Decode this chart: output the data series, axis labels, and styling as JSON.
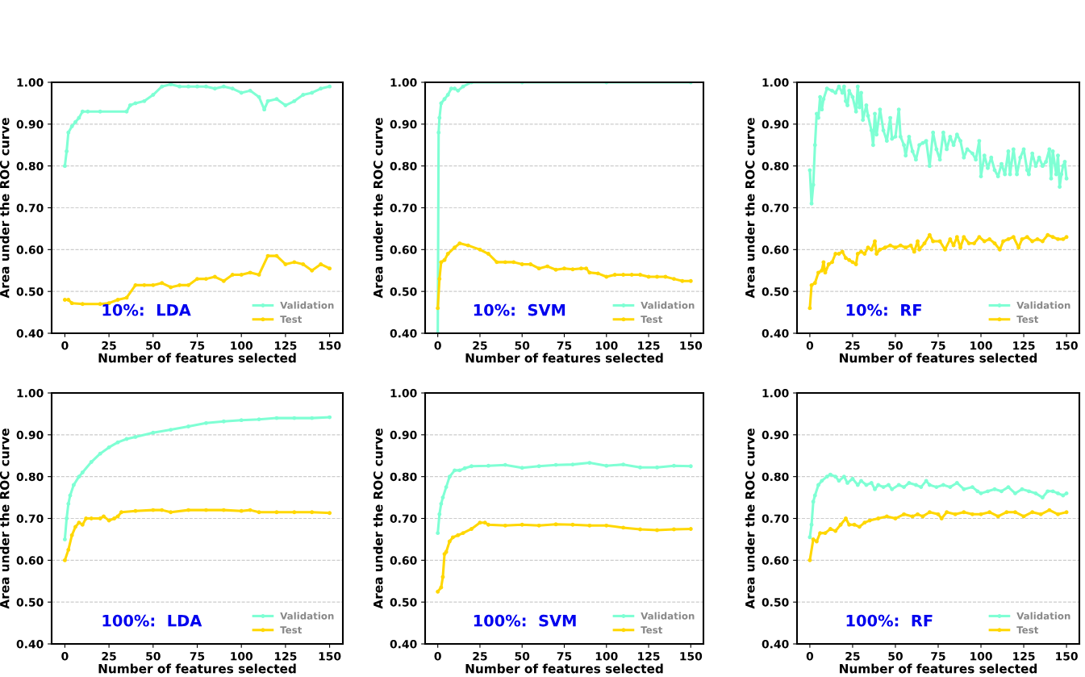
{
  "chart_data": [
    {
      "type": "line",
      "xlabel": "Number of features selected",
      "ylabel": "Area under the ROC curve",
      "annotations": [
        "10%:  LDA"
      ],
      "xlim": [
        -7.5,
        157.5
      ],
      "ylim": [
        0.4,
        1.0
      ],
      "xticks": [
        0,
        25,
        50,
        75,
        100,
        125,
        150
      ],
      "yticks": [
        {
          "value": 0.4,
          "label": "0.40"
        },
        {
          "value": 0.5,
          "label": "0.50"
        },
        {
          "value": 0.6,
          "label": "0.60"
        },
        {
          "value": 0.7,
          "label": "0.70"
        },
        {
          "value": 0.8,
          "label": "0.80"
        },
        {
          "value": 0.9,
          "label": "0.90"
        },
        {
          "value": 1.0,
          "label": "1.00"
        }
      ],
      "grid": "y",
      "legend": "bottom right",
      "marker": "circle",
      "line_style": "solid",
      "series": [
        {
          "name": "Validation",
          "color": "#7fffd4",
          "x": [
            0,
            1,
            2,
            4,
            6,
            8,
            10,
            13,
            20,
            35,
            37,
            40,
            45,
            50,
            55,
            60,
            65,
            70,
            75,
            80,
            85,
            90,
            95,
            100,
            105,
            110,
            113,
            115,
            120,
            125,
            130,
            135,
            140,
            145,
            150
          ],
          "values": [
            0.8,
            0.835,
            0.88,
            0.895,
            0.905,
            0.915,
            0.93,
            0.93,
            0.93,
            0.93,
            0.945,
            0.95,
            0.955,
            0.97,
            0.99,
            0.995,
            0.99,
            0.99,
            0.99,
            0.99,
            0.985,
            0.99,
            0.985,
            0.975,
            0.98,
            0.965,
            0.935,
            0.955,
            0.96,
            0.945,
            0.955,
            0.97,
            0.975,
            0.985,
            0.99
          ]
        },
        {
          "name": "Test",
          "color": "#ffd700",
          "x": [
            0,
            2,
            4,
            10,
            20,
            25,
            30,
            35,
            40,
            45,
            50,
            55,
            60,
            65,
            70,
            75,
            80,
            85,
            90,
            95,
            100,
            105,
            110,
            115,
            120,
            125,
            130,
            135,
            140,
            145,
            150
          ],
          "values": [
            0.48,
            0.48,
            0.472,
            0.47,
            0.47,
            0.472,
            0.48,
            0.485,
            0.515,
            0.515,
            0.515,
            0.52,
            0.51,
            0.515,
            0.515,
            0.53,
            0.53,
            0.535,
            0.525,
            0.54,
            0.54,
            0.545,
            0.54,
            0.585,
            0.585,
            0.565,
            0.57,
            0.565,
            0.55,
            0.565,
            0.555
          ]
        }
      ]
    },
    {
      "type": "line",
      "xlabel": "Number of features selected",
      "ylabel": "Area under the ROC curve",
      "annotations": [
        "10%:  SVM"
      ],
      "xlim": [
        -7.5,
        157.5
      ],
      "ylim": [
        0.4,
        1.0
      ],
      "xticks": [
        0,
        25,
        50,
        75,
        100,
        125,
        150
      ],
      "yticks": [
        {
          "value": 0.4,
          "label": "0.40"
        },
        {
          "value": 0.5,
          "label": "0.50"
        },
        {
          "value": 0.6,
          "label": "0.60"
        },
        {
          "value": 0.7,
          "label": "0.70"
        },
        {
          "value": 0.8,
          "label": "0.80"
        },
        {
          "value": 0.9,
          "label": "0.90"
        },
        {
          "value": 1.0,
          "label": "1.00"
        }
      ],
      "grid": "y",
      "legend": "bottom right",
      "marker": "circle",
      "line_style": "solid",
      "series": [
        {
          "name": "Validation",
          "color": "#7fffd4",
          "x": [
            0,
            0.5,
            1,
            2,
            4,
            6,
            8,
            10,
            12,
            15,
            20,
            50,
            100,
            150
          ],
          "values": [
            0.4,
            0.88,
            0.915,
            0.95,
            0.96,
            0.97,
            0.985,
            0.985,
            0.98,
            0.99,
            1.0,
            1.0,
            1.0,
            1.0
          ]
        },
        {
          "name": "Test",
          "color": "#ffd700",
          "x": [
            0,
            1,
            2,
            4,
            6,
            10,
            13,
            18,
            25,
            30,
            35,
            40,
            45,
            50,
            55,
            60,
            65,
            70,
            75,
            80,
            85,
            88,
            90,
            95,
            100,
            105,
            110,
            115,
            120,
            125,
            130,
            135,
            140,
            145,
            150
          ],
          "values": [
            0.46,
            0.53,
            0.57,
            0.575,
            0.59,
            0.605,
            0.615,
            0.61,
            0.6,
            0.59,
            0.57,
            0.57,
            0.57,
            0.565,
            0.565,
            0.555,
            0.56,
            0.552,
            0.555,
            0.553,
            0.555,
            0.555,
            0.545,
            0.543,
            0.535,
            0.54,
            0.54,
            0.54,
            0.54,
            0.535,
            0.535,
            0.535,
            0.53,
            0.525,
            0.525
          ]
        }
      ]
    },
    {
      "type": "line",
      "xlabel": "Number of features selected",
      "ylabel": "Area under the ROC curve",
      "annotations": [
        "10%:  RF"
      ],
      "xlim": [
        -7.5,
        157.5
      ],
      "ylim": [
        0.4,
        1.0
      ],
      "xticks": [
        0,
        25,
        50,
        75,
        100,
        125,
        150
      ],
      "yticks": [
        {
          "value": 0.4,
          "label": "0.40"
        },
        {
          "value": 0.5,
          "label": "0.50"
        },
        {
          "value": 0.6,
          "label": "0.60"
        },
        {
          "value": 0.7,
          "label": "0.70"
        },
        {
          "value": 0.8,
          "label": "0.80"
        },
        {
          "value": 0.9,
          "label": "0.90"
        },
        {
          "value": 1.0,
          "label": "1.00"
        }
      ],
      "grid": "y",
      "legend": "bottom right",
      "marker": "circle",
      "line_style": "solid",
      "series": [
        {
          "name": "Validation",
          "color": "#7fffd4",
          "x": [
            0,
            1,
            2,
            3,
            4,
            5,
            6,
            7,
            8,
            10,
            13,
            15,
            17,
            19,
            20,
            21,
            22,
            23,
            25,
            27,
            28,
            29,
            30,
            31,
            33,
            34,
            36,
            37,
            38,
            39,
            41,
            43,
            45,
            47,
            48,
            50,
            52,
            53,
            55,
            56,
            58,
            60,
            62,
            64,
            66,
            68,
            70,
            72,
            74,
            76,
            78,
            80,
            82,
            84,
            86,
            88,
            90,
            92,
            95,
            97,
            99,
            100,
            102,
            104,
            106,
            108,
            110,
            112,
            114,
            116,
            117,
            119,
            121,
            123,
            125,
            127,
            128,
            130,
            132,
            134,
            136,
            138,
            140,
            141,
            142,
            144,
            145,
            146,
            147,
            148,
            149,
            150
          ],
          "values": [
            0.79,
            0.71,
            0.755,
            0.85,
            0.925,
            0.915,
            0.965,
            0.935,
            0.96,
            0.985,
            0.98,
            0.975,
            0.99,
            0.975,
            0.99,
            0.955,
            0.945,
            0.98,
            0.965,
            0.93,
            0.99,
            0.94,
            0.975,
            0.91,
            0.945,
            0.92,
            0.885,
            0.85,
            0.925,
            0.875,
            0.935,
            0.885,
            0.86,
            0.915,
            0.865,
            0.87,
            0.935,
            0.87,
            0.85,
            0.825,
            0.87,
            0.835,
            0.815,
            0.85,
            0.855,
            0.86,
            0.8,
            0.88,
            0.84,
            0.815,
            0.88,
            0.84,
            0.87,
            0.85,
            0.875,
            0.86,
            0.82,
            0.84,
            0.83,
            0.815,
            0.86,
            0.775,
            0.825,
            0.795,
            0.82,
            0.79,
            0.775,
            0.805,
            0.78,
            0.835,
            0.78,
            0.84,
            0.78,
            0.82,
            0.84,
            0.79,
            0.78,
            0.83,
            0.8,
            0.82,
            0.8,
            0.81,
            0.84,
            0.77,
            0.835,
            0.78,
            0.825,
            0.75,
            0.78,
            0.8,
            0.81,
            0.77
          ]
        },
        {
          "name": "Test",
          "color": "#ffd700",
          "x": [
            0,
            1,
            3,
            5,
            7,
            8,
            9,
            11,
            13,
            15,
            17,
            19,
            21,
            23,
            25,
            27,
            28,
            30,
            32,
            34,
            36,
            38,
            39,
            41,
            44,
            47,
            50,
            53,
            56,
            59,
            61,
            63,
            64,
            67,
            70,
            72,
            76,
            79,
            82,
            84,
            86,
            88,
            90,
            93,
            96,
            99,
            102,
            105,
            108,
            111,
            113,
            116,
            119,
            122,
            124,
            127,
            130,
            133,
            136,
            139,
            142,
            145,
            148,
            150
          ],
          "values": [
            0.46,
            0.515,
            0.52,
            0.545,
            0.55,
            0.57,
            0.545,
            0.565,
            0.57,
            0.59,
            0.59,
            0.595,
            0.58,
            0.575,
            0.57,
            0.565,
            0.59,
            0.595,
            0.59,
            0.605,
            0.6,
            0.62,
            0.59,
            0.6,
            0.605,
            0.61,
            0.605,
            0.61,
            0.605,
            0.61,
            0.595,
            0.62,
            0.6,
            0.615,
            0.635,
            0.62,
            0.62,
            0.6,
            0.625,
            0.61,
            0.63,
            0.605,
            0.63,
            0.615,
            0.615,
            0.63,
            0.62,
            0.625,
            0.615,
            0.6,
            0.62,
            0.625,
            0.63,
            0.605,
            0.625,
            0.63,
            0.62,
            0.625,
            0.62,
            0.635,
            0.63,
            0.625,
            0.625,
            0.63
          ]
        }
      ]
    },
    {
      "type": "line",
      "xlabel": "Number of features selected",
      "ylabel": "Area under the ROC curve",
      "annotations": [
        "100%:  LDA"
      ],
      "xlim": [
        -7.5,
        157.5
      ],
      "ylim": [
        0.4,
        1.0
      ],
      "xticks": [
        0,
        25,
        50,
        75,
        100,
        125,
        150
      ],
      "yticks": [
        {
          "value": 0.4,
          "label": "0.40"
        },
        {
          "value": 0.5,
          "label": "0.50"
        },
        {
          "value": 0.6,
          "label": "0.60"
        },
        {
          "value": 0.7,
          "label": "0.70"
        },
        {
          "value": 0.8,
          "label": "0.80"
        },
        {
          "value": 0.9,
          "label": "0.90"
        },
        {
          "value": 1.0,
          "label": "1.00"
        }
      ],
      "grid": "y",
      "legend": "bottom right",
      "marker": "circle",
      "line_style": "solid",
      "series": [
        {
          "name": "Validation",
          "color": "#7fffd4",
          "x": [
            0,
            1,
            2,
            3,
            5,
            8,
            10,
            15,
            20,
            25,
            30,
            35,
            40,
            50,
            60,
            70,
            80,
            90,
            100,
            110,
            120,
            130,
            140,
            150
          ],
          "values": [
            0.65,
            0.7,
            0.735,
            0.755,
            0.78,
            0.8,
            0.81,
            0.835,
            0.855,
            0.87,
            0.882,
            0.89,
            0.895,
            0.905,
            0.912,
            0.92,
            0.928,
            0.932,
            0.935,
            0.937,
            0.94,
            0.94,
            0.94,
            0.942
          ]
        },
        {
          "name": "Test",
          "color": "#ffd700",
          "x": [
            0,
            2,
            4,
            6,
            8,
            10,
            12,
            15,
            20,
            22,
            25,
            28,
            30,
            32,
            40,
            50,
            55,
            60,
            70,
            80,
            90,
            100,
            105,
            110,
            120,
            130,
            140,
            150
          ],
          "values": [
            0.6,
            0.625,
            0.66,
            0.68,
            0.69,
            0.685,
            0.7,
            0.7,
            0.7,
            0.705,
            0.695,
            0.7,
            0.705,
            0.715,
            0.718,
            0.72,
            0.72,
            0.715,
            0.72,
            0.72,
            0.72,
            0.718,
            0.72,
            0.715,
            0.715,
            0.715,
            0.715,
            0.713
          ]
        }
      ]
    },
    {
      "type": "line",
      "xlabel": "Number of features selected",
      "ylabel": "Area under the ROC curve",
      "annotations": [
        "100%:  SVM"
      ],
      "xlim": [
        -7.5,
        157.5
      ],
      "ylim": [
        0.4,
        1.0
      ],
      "xticks": [
        0,
        25,
        50,
        75,
        100,
        125,
        150
      ],
      "yticks": [
        {
          "value": 0.4,
          "label": "0.40"
        },
        {
          "value": 0.5,
          "label": "0.50"
        },
        {
          "value": 0.6,
          "label": "0.60"
        },
        {
          "value": 0.7,
          "label": "0.70"
        },
        {
          "value": 0.8,
          "label": "0.80"
        },
        {
          "value": 0.9,
          "label": "0.90"
        },
        {
          "value": 1.0,
          "label": "1.00"
        }
      ],
      "grid": "y",
      "legend": "bottom right",
      "marker": "circle",
      "line_style": "solid",
      "series": [
        {
          "name": "Validation",
          "color": "#7fffd4",
          "x": [
            0,
            1,
            2,
            3,
            5,
            7,
            10,
            13,
            16,
            20,
            30,
            40,
            50,
            60,
            70,
            80,
            90,
            100,
            110,
            120,
            130,
            140,
            150
          ],
          "values": [
            0.665,
            0.71,
            0.735,
            0.75,
            0.775,
            0.8,
            0.815,
            0.815,
            0.82,
            0.825,
            0.826,
            0.828,
            0.821,
            0.825,
            0.828,
            0.829,
            0.833,
            0.826,
            0.829,
            0.822,
            0.822,
            0.826,
            0.825
          ]
        },
        {
          "name": "Test",
          "color": "#ffd700",
          "x": [
            0,
            2,
            3,
            4,
            5,
            7,
            9,
            12,
            15,
            20,
            25,
            28,
            30,
            40,
            50,
            60,
            70,
            80,
            90,
            100,
            110,
            120,
            130,
            140,
            150
          ],
          "values": [
            0.525,
            0.535,
            0.56,
            0.615,
            0.62,
            0.645,
            0.655,
            0.66,
            0.665,
            0.675,
            0.69,
            0.69,
            0.685,
            0.683,
            0.685,
            0.683,
            0.686,
            0.685,
            0.683,
            0.683,
            0.678,
            0.674,
            0.672,
            0.674,
            0.675
          ]
        }
      ]
    },
    {
      "type": "line",
      "xlabel": "Number of features selected",
      "ylabel": "Area under the ROC curve",
      "annotations": [
        "100%:  RF"
      ],
      "xlim": [
        -7.5,
        157.5
      ],
      "ylim": [
        0.4,
        1.0
      ],
      "xticks": [
        0,
        25,
        50,
        75,
        100,
        125,
        150
      ],
      "yticks": [
        {
          "value": 0.4,
          "label": "0.40"
        },
        {
          "value": 0.5,
          "label": "0.50"
        },
        {
          "value": 0.6,
          "label": "0.60"
        },
        {
          "value": 0.7,
          "label": "0.70"
        },
        {
          "value": 0.8,
          "label": "0.80"
        },
        {
          "value": 0.9,
          "label": "0.90"
        },
        {
          "value": 1.0,
          "label": "1.00"
        }
      ],
      "grid": "y",
      "legend": "bottom right",
      "marker": "circle",
      "line_style": "solid",
      "series": [
        {
          "name": "Validation",
          "color": "#7fffd4",
          "x": [
            0,
            1,
            2,
            3,
            5,
            7,
            10,
            12,
            15,
            17,
            20,
            22,
            25,
            28,
            30,
            33,
            36,
            38,
            40,
            43,
            46,
            48,
            52,
            55,
            58,
            62,
            65,
            68,
            70,
            74,
            78,
            82,
            86,
            90,
            95,
            98,
            100,
            104,
            108,
            112,
            116,
            120,
            124,
            128,
            132,
            136,
            139,
            142,
            145,
            148,
            150
          ],
          "values": [
            0.655,
            0.685,
            0.74,
            0.755,
            0.78,
            0.79,
            0.8,
            0.805,
            0.8,
            0.79,
            0.8,
            0.785,
            0.795,
            0.78,
            0.79,
            0.78,
            0.785,
            0.77,
            0.78,
            0.775,
            0.78,
            0.77,
            0.78,
            0.775,
            0.785,
            0.78,
            0.775,
            0.79,
            0.78,
            0.775,
            0.78,
            0.775,
            0.785,
            0.77,
            0.775,
            0.765,
            0.76,
            0.765,
            0.77,
            0.765,
            0.775,
            0.76,
            0.77,
            0.765,
            0.76,
            0.75,
            0.765,
            0.765,
            0.76,
            0.755,
            0.76
          ]
        },
        {
          "name": "Test",
          "color": "#ffd700",
          "x": [
            0,
            2,
            4,
            6,
            9,
            12,
            15,
            18,
            21,
            23,
            26,
            29,
            32,
            35,
            40,
            45,
            50,
            55,
            60,
            63,
            66,
            70,
            75,
            77,
            80,
            85,
            90,
            95,
            100,
            105,
            110,
            115,
            120,
            125,
            130,
            135,
            140,
            145,
            150
          ],
          "values": [
            0.6,
            0.65,
            0.645,
            0.665,
            0.665,
            0.675,
            0.67,
            0.685,
            0.7,
            0.685,
            0.685,
            0.68,
            0.69,
            0.695,
            0.7,
            0.705,
            0.7,
            0.71,
            0.705,
            0.71,
            0.705,
            0.715,
            0.71,
            0.7,
            0.715,
            0.71,
            0.715,
            0.71,
            0.71,
            0.715,
            0.705,
            0.715,
            0.715,
            0.705,
            0.715,
            0.71,
            0.72,
            0.71,
            0.715
          ]
        }
      ]
    }
  ]
}
